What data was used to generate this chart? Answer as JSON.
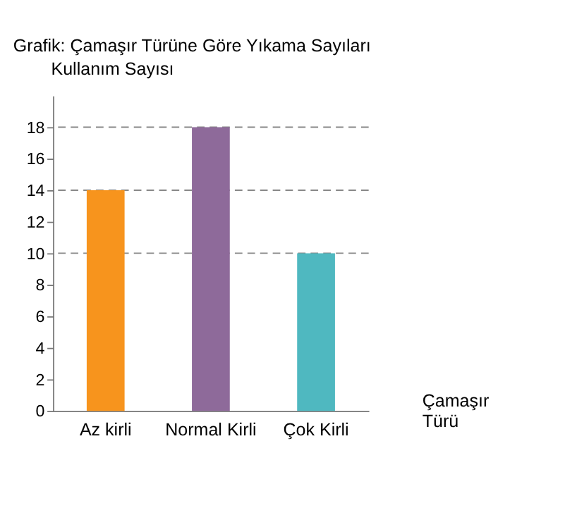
{
  "chart_data": {
    "type": "bar",
    "title": "Grafik: Çamaşır Türüne Göre Yıkama Sayıları",
    "xlabel": "Çamaşır Türü",
    "ylabel": "Kullanım Sayısı",
    "categories": [
      "Az kirli",
      "Normal Kirli",
      "Çok Kirli"
    ],
    "values": [
      14,
      18,
      10
    ],
    "colors": [
      "#f7941d",
      "#8e6a9a",
      "#4fb8c0"
    ],
    "ylim": [
      0,
      20
    ],
    "yticks": [
      0,
      2,
      4,
      6,
      8,
      10,
      12,
      14,
      16,
      18
    ],
    "grid": false,
    "ref_lines": [
      {
        "axis": "y",
        "value": 18,
        "line_style": "dashed",
        "color": "#888888"
      },
      {
        "axis": "y",
        "value": 14,
        "line_style": "dashed",
        "color": "#888888"
      },
      {
        "axis": "y",
        "value": 10,
        "line_style": "dashed",
        "color": "#888888"
      }
    ]
  }
}
